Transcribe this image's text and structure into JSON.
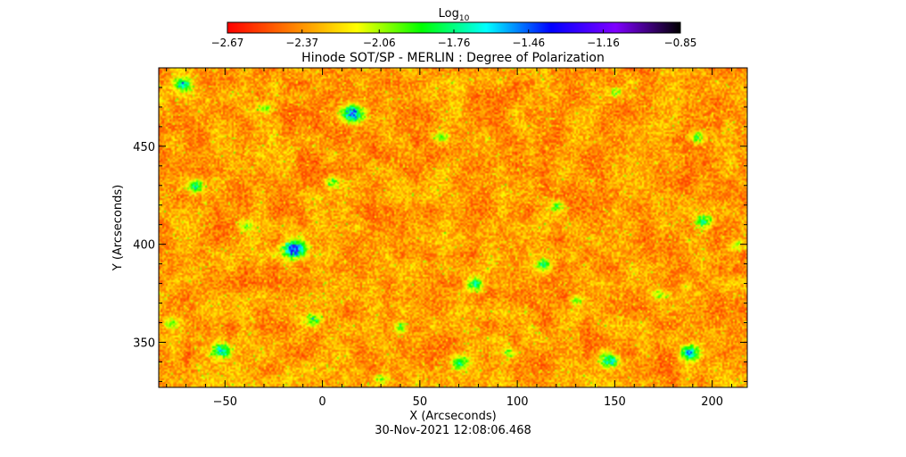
{
  "chart_data": {
    "type": "heatmap",
    "title": "Hinode SOT/SP - MERLIN : Degree of Polarization",
    "subtitle": "30-Nov-2021 12:08:06.468",
    "xlabel": "X (Arcseconds)",
    "ylabel": "Y (Arcseconds)",
    "xlim": [
      -84,
      218
    ],
    "ylim": [
      327,
      490
    ],
    "xticks": [
      -50,
      0,
      50,
      100,
      150,
      200
    ],
    "yticks": [
      350,
      400,
      450
    ],
    "xtick_labels": [
      "−50",
      "0",
      "50",
      "100",
      "150",
      "200"
    ],
    "ytick_labels": [
      "350",
      "400",
      "450"
    ],
    "colorbar": {
      "label_base": "Log",
      "label_sub": "10",
      "min": -2.67,
      "max": -0.85,
      "ticks": [
        -2.67,
        -2.37,
        -2.06,
        -1.76,
        -1.46,
        -1.16,
        -0.85
      ],
      "tick_labels": [
        "−2.67",
        "−2.37",
        "−2.06",
        "−1.76",
        "−1.46",
        "−1.16",
        "−0.85"
      ],
      "colors": [
        "#ff0000",
        "#ff7f00",
        "#ffff00",
        "#00ff00",
        "#00ffff",
        "#0000ff",
        "#7f00ff",
        "#000000"
      ]
    },
    "features": [
      {
        "x": 15,
        "y": 467,
        "strength": 1.0
      },
      {
        "x": -15,
        "y": 398,
        "strength": 1.0
      },
      {
        "x": -65,
        "y": 430,
        "strength": 0.65
      },
      {
        "x": -72,
        "y": 482,
        "strength": 0.6
      },
      {
        "x": -52,
        "y": 346,
        "strength": 0.75
      },
      {
        "x": 147,
        "y": 341,
        "strength": 0.75
      },
      {
        "x": 188,
        "y": 345,
        "strength": 0.75
      },
      {
        "x": 195,
        "y": 412,
        "strength": 0.55
      },
      {
        "x": 192,
        "y": 455,
        "strength": 0.5
      },
      {
        "x": -40,
        "y": 410,
        "strength": 0.45
      },
      {
        "x": 78,
        "y": 380,
        "strength": 0.6
      },
      {
        "x": 113,
        "y": 390,
        "strength": 0.5
      },
      {
        "x": 120,
        "y": 420,
        "strength": 0.45
      },
      {
        "x": 70,
        "y": 340,
        "strength": 0.55
      },
      {
        "x": -5,
        "y": 362,
        "strength": 0.5
      },
      {
        "x": 40,
        "y": 358,
        "strength": 0.45
      },
      {
        "x": 5,
        "y": 432,
        "strength": 0.4
      },
      {
        "x": 150,
        "y": 478,
        "strength": 0.4
      },
      {
        "x": -78,
        "y": 360,
        "strength": 0.4
      },
      {
        "x": 130,
        "y": 372,
        "strength": 0.4
      },
      {
        "x": 212,
        "y": 400,
        "strength": 0.35
      },
      {
        "x": 95,
        "y": 345,
        "strength": 0.35
      },
      {
        "x": 172,
        "y": 375,
        "strength": 0.35
      },
      {
        "x": -30,
        "y": 470,
        "strength": 0.35
      },
      {
        "x": 60,
        "y": 455,
        "strength": 0.3
      },
      {
        "x": 30,
        "y": 332,
        "strength": 0.35
      }
    ]
  }
}
